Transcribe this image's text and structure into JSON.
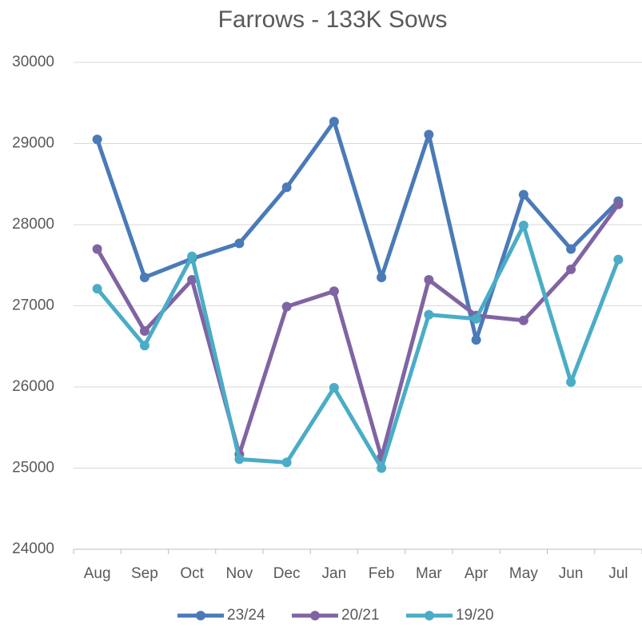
{
  "chart_data": {
    "type": "line",
    "title": "Farrows - 133K Sows",
    "categories": [
      "Aug",
      "Sep",
      "Oct",
      "Nov",
      "Dec",
      "Jan",
      "Feb",
      "Mar",
      "Apr",
      "May",
      "Jun",
      "Jul"
    ],
    "series": [
      {
        "name": "23/24",
        "color": "#4a7ab8",
        "values": [
          29050,
          27350,
          27580,
          27770,
          28460,
          29270,
          27350,
          29110,
          26580,
          28370,
          27700,
          28290
        ]
      },
      {
        "name": "20/21",
        "color": "#8064a2",
        "values": [
          27700,
          26690,
          27320,
          25170,
          26990,
          27180,
          25130,
          27320,
          26880,
          26820,
          27450,
          28250
        ]
      },
      {
        "name": "19/20",
        "color": "#4bacc6",
        "values": [
          27210,
          26510,
          27610,
          25110,
          25070,
          25990,
          25000,
          26890,
          26840,
          27990,
          26060,
          27570
        ]
      }
    ],
    "ylim": [
      24000,
      30000
    ],
    "yticks": [
      24000,
      25000,
      26000,
      27000,
      28000,
      29000,
      30000
    ],
    "grid": true,
    "legend": "bottom"
  }
}
